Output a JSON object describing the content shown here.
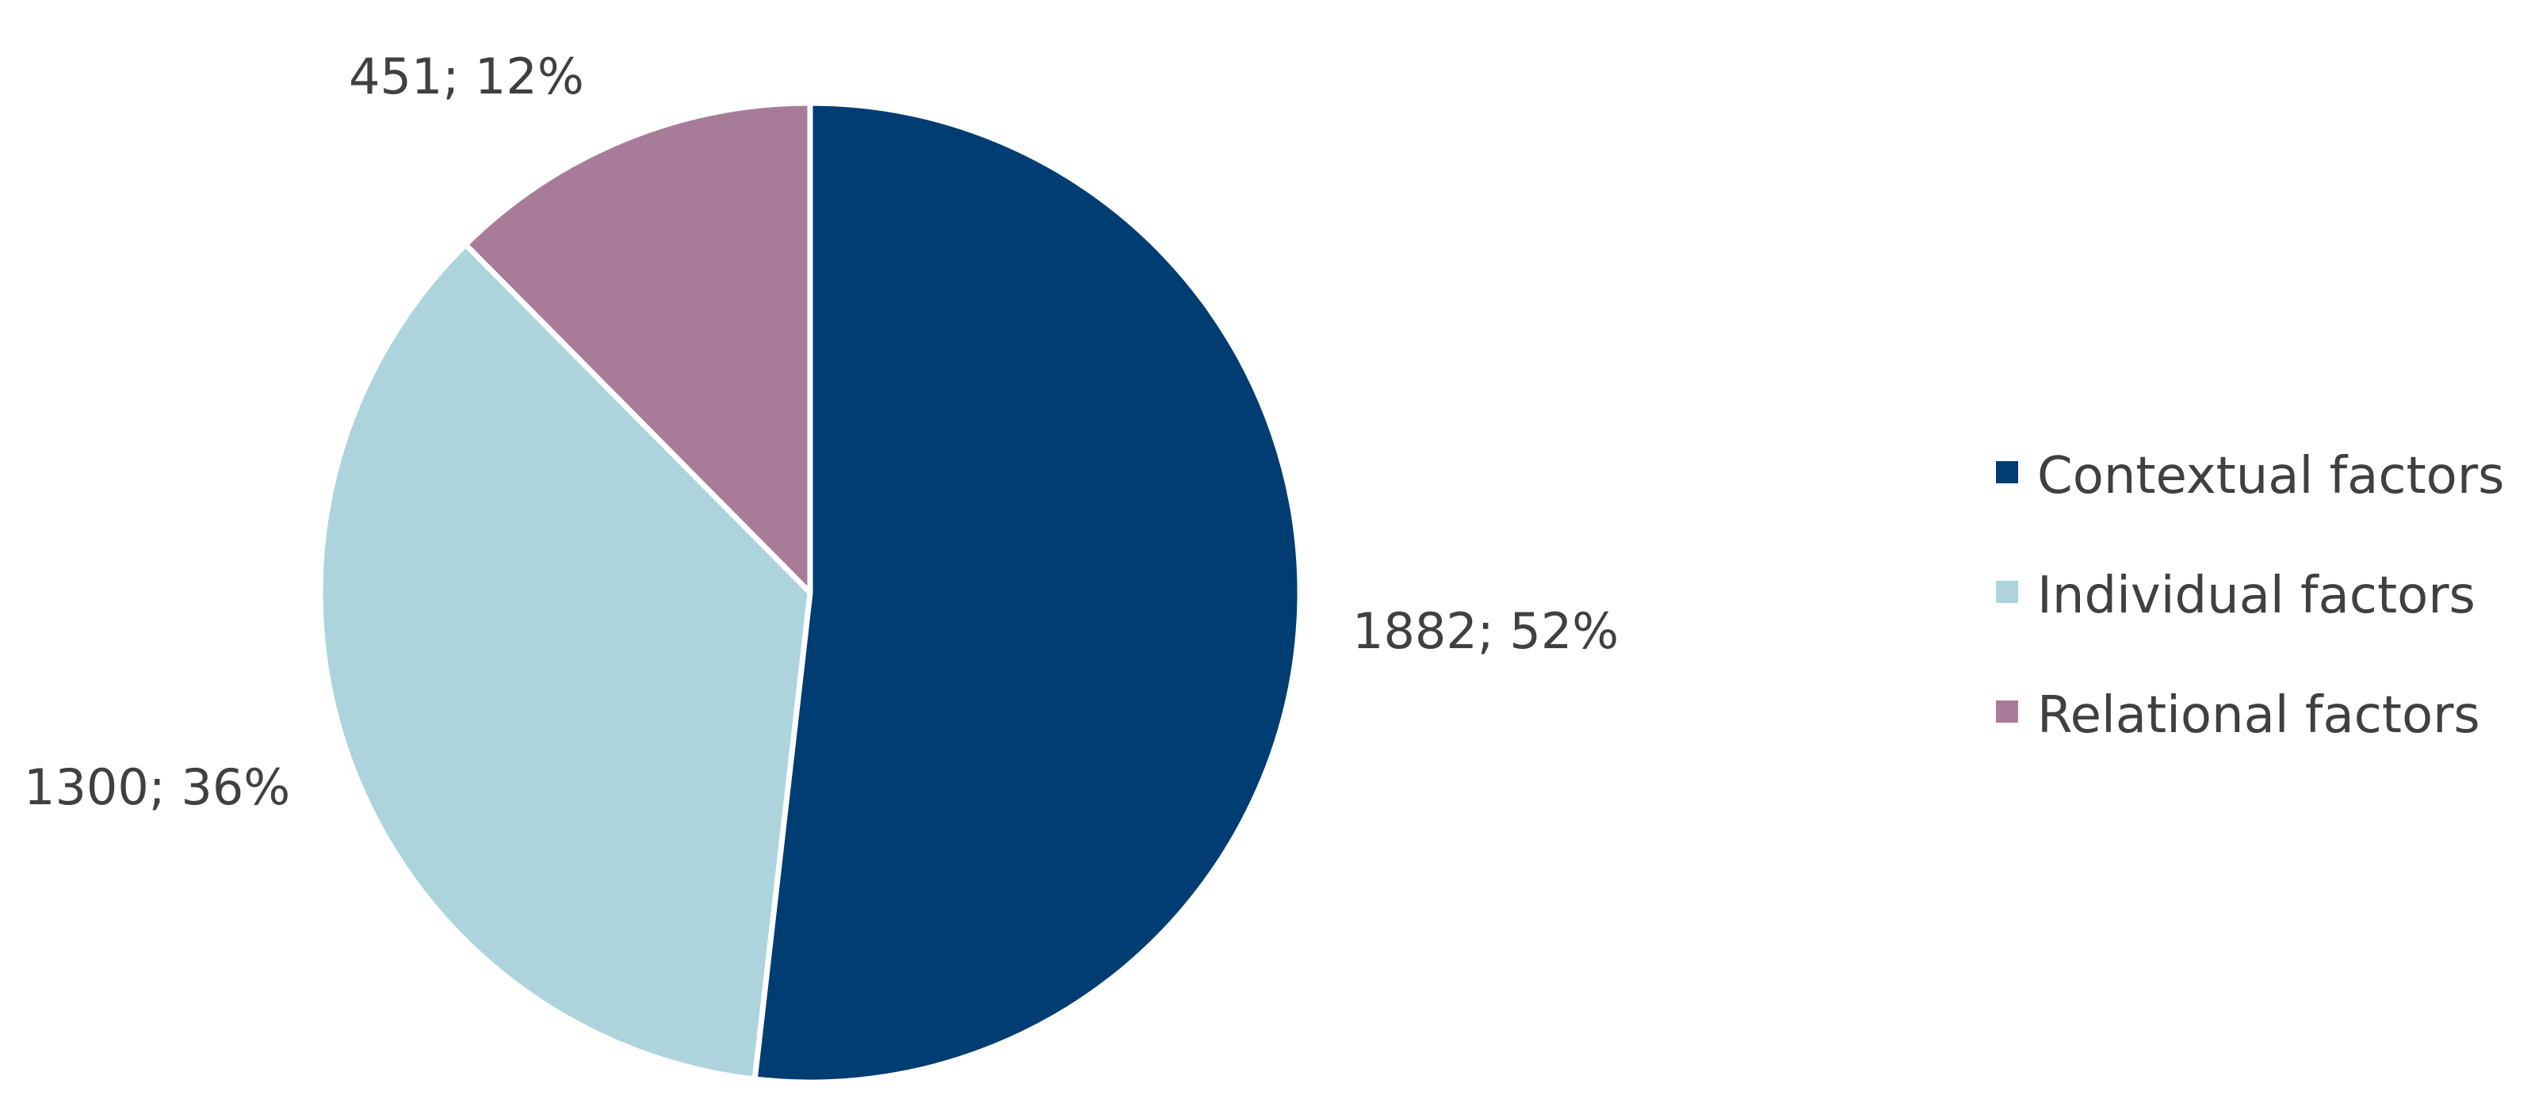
{
  "chart_data": {
    "type": "pie",
    "slices": [
      {
        "name": "Contextual factors",
        "value": 1882,
        "percent": 52,
        "label": "1882; 52%",
        "color": "#003D73"
      },
      {
        "name": "Individual factors",
        "value": 1300,
        "percent": 36,
        "label": "1300; 36%",
        "color": "#ADD4DD"
      },
      {
        "name": "Relational factors",
        "value": 451,
        "percent": 12,
        "label": "451; 12%",
        "color": "#A87C99"
      }
    ],
    "legend_position": "right"
  }
}
